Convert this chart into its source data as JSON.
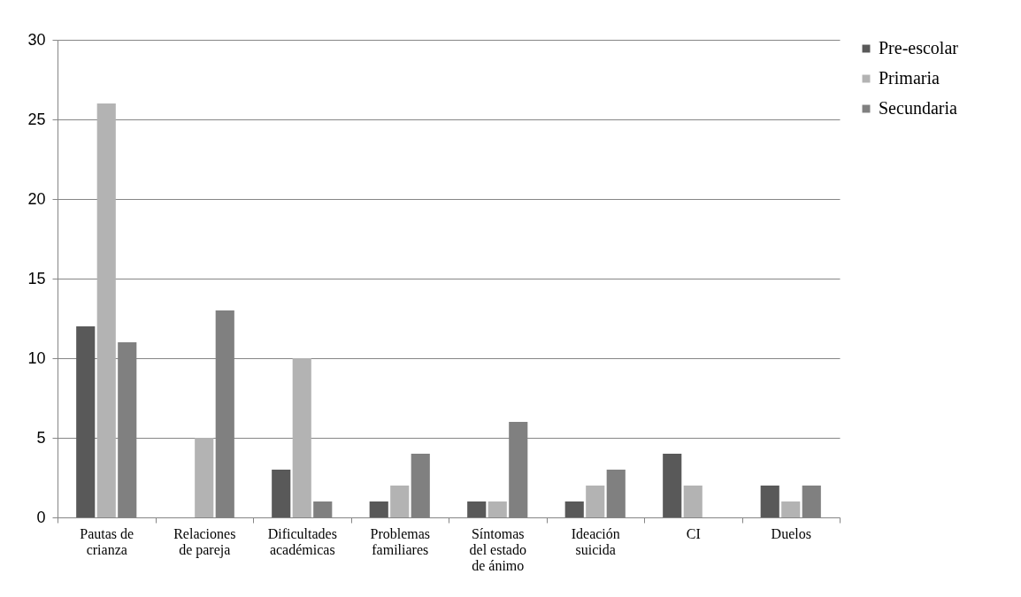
{
  "chart_data": {
    "type": "bar",
    "categories": [
      "Pautas de crianza",
      "Relaciones de pareja",
      "Dificultades académicas",
      "Problemas familiares",
      "Síntomas del estado de ánimo",
      "Ideación suicida",
      "CI",
      "Duelos"
    ],
    "series": [
      {
        "name": "Pre-escolar",
        "color": "#595959",
        "values": [
          12,
          0,
          3,
          1,
          1,
          1,
          4,
          2
        ]
      },
      {
        "name": "Primaria",
        "color": "#b3b3b3",
        "values": [
          26,
          5,
          10,
          2,
          1,
          2,
          2,
          1
        ]
      },
      {
        "name": "Secundaria",
        "color": "#808080",
        "values": [
          11,
          13,
          1,
          4,
          6,
          3,
          0,
          2
        ]
      }
    ],
    "ylim": [
      0,
      30
    ],
    "yticks": [
      0,
      5,
      10,
      15,
      20,
      25,
      30
    ],
    "grid": "y",
    "legend": "right"
  }
}
